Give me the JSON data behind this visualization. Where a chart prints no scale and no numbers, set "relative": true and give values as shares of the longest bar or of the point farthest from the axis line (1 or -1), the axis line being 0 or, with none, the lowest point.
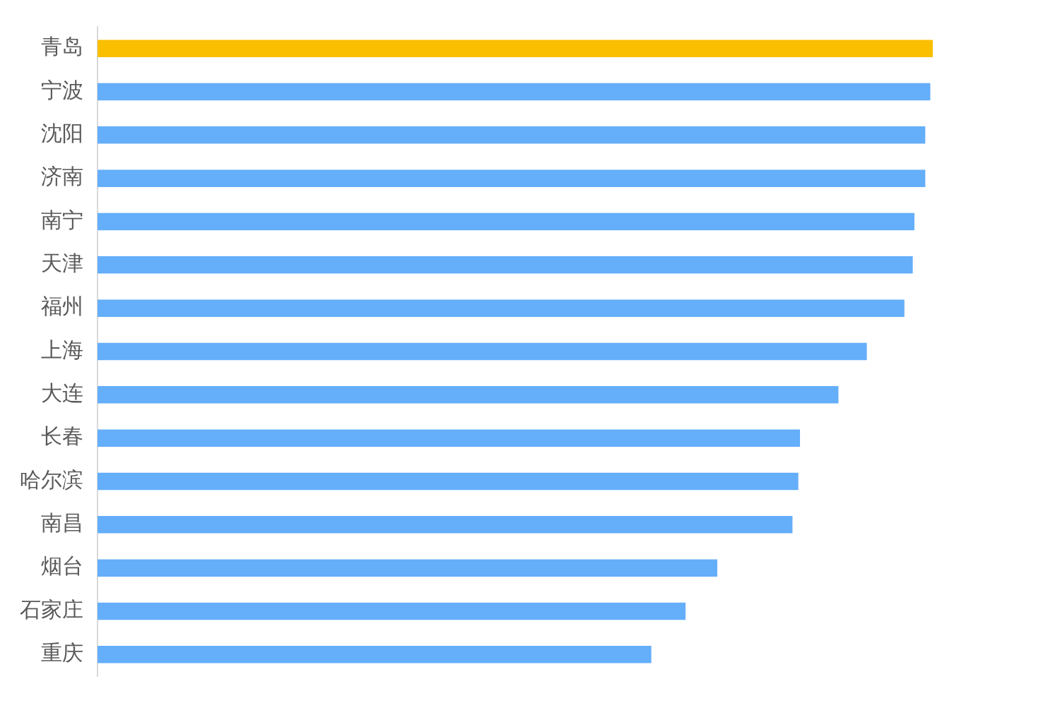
{
  "chart_data": {
    "type": "bar",
    "orientation": "horizontal",
    "relative": true,
    "legend": false,
    "categories": [
      "青岛",
      "宁波",
      "沈阳",
      "济南",
      "南宁",
      "天津",
      "福州",
      "上海",
      "大连",
      "长春",
      "哈尔滨",
      "南昌",
      "烟台",
      "石家庄",
      "重庆"
    ],
    "values": [
      1,
      0.997,
      0.991,
      0.991,
      0.978,
      0.976,
      0.966,
      0.921,
      0.887,
      0.841,
      0.839,
      0.832,
      0.742,
      0.704,
      0.663
    ],
    "colors": [
      "#f9bf00",
      "#64aefa",
      "#64aefa",
      "#64aefa",
      "#64aefa",
      "#64aefa",
      "#64aefa",
      "#64aefa",
      "#64aefa",
      "#64aefa",
      "#64aefa",
      "#64aefa",
      "#64aefa",
      "#64aefa",
      "#64aefa"
    ]
  }
}
